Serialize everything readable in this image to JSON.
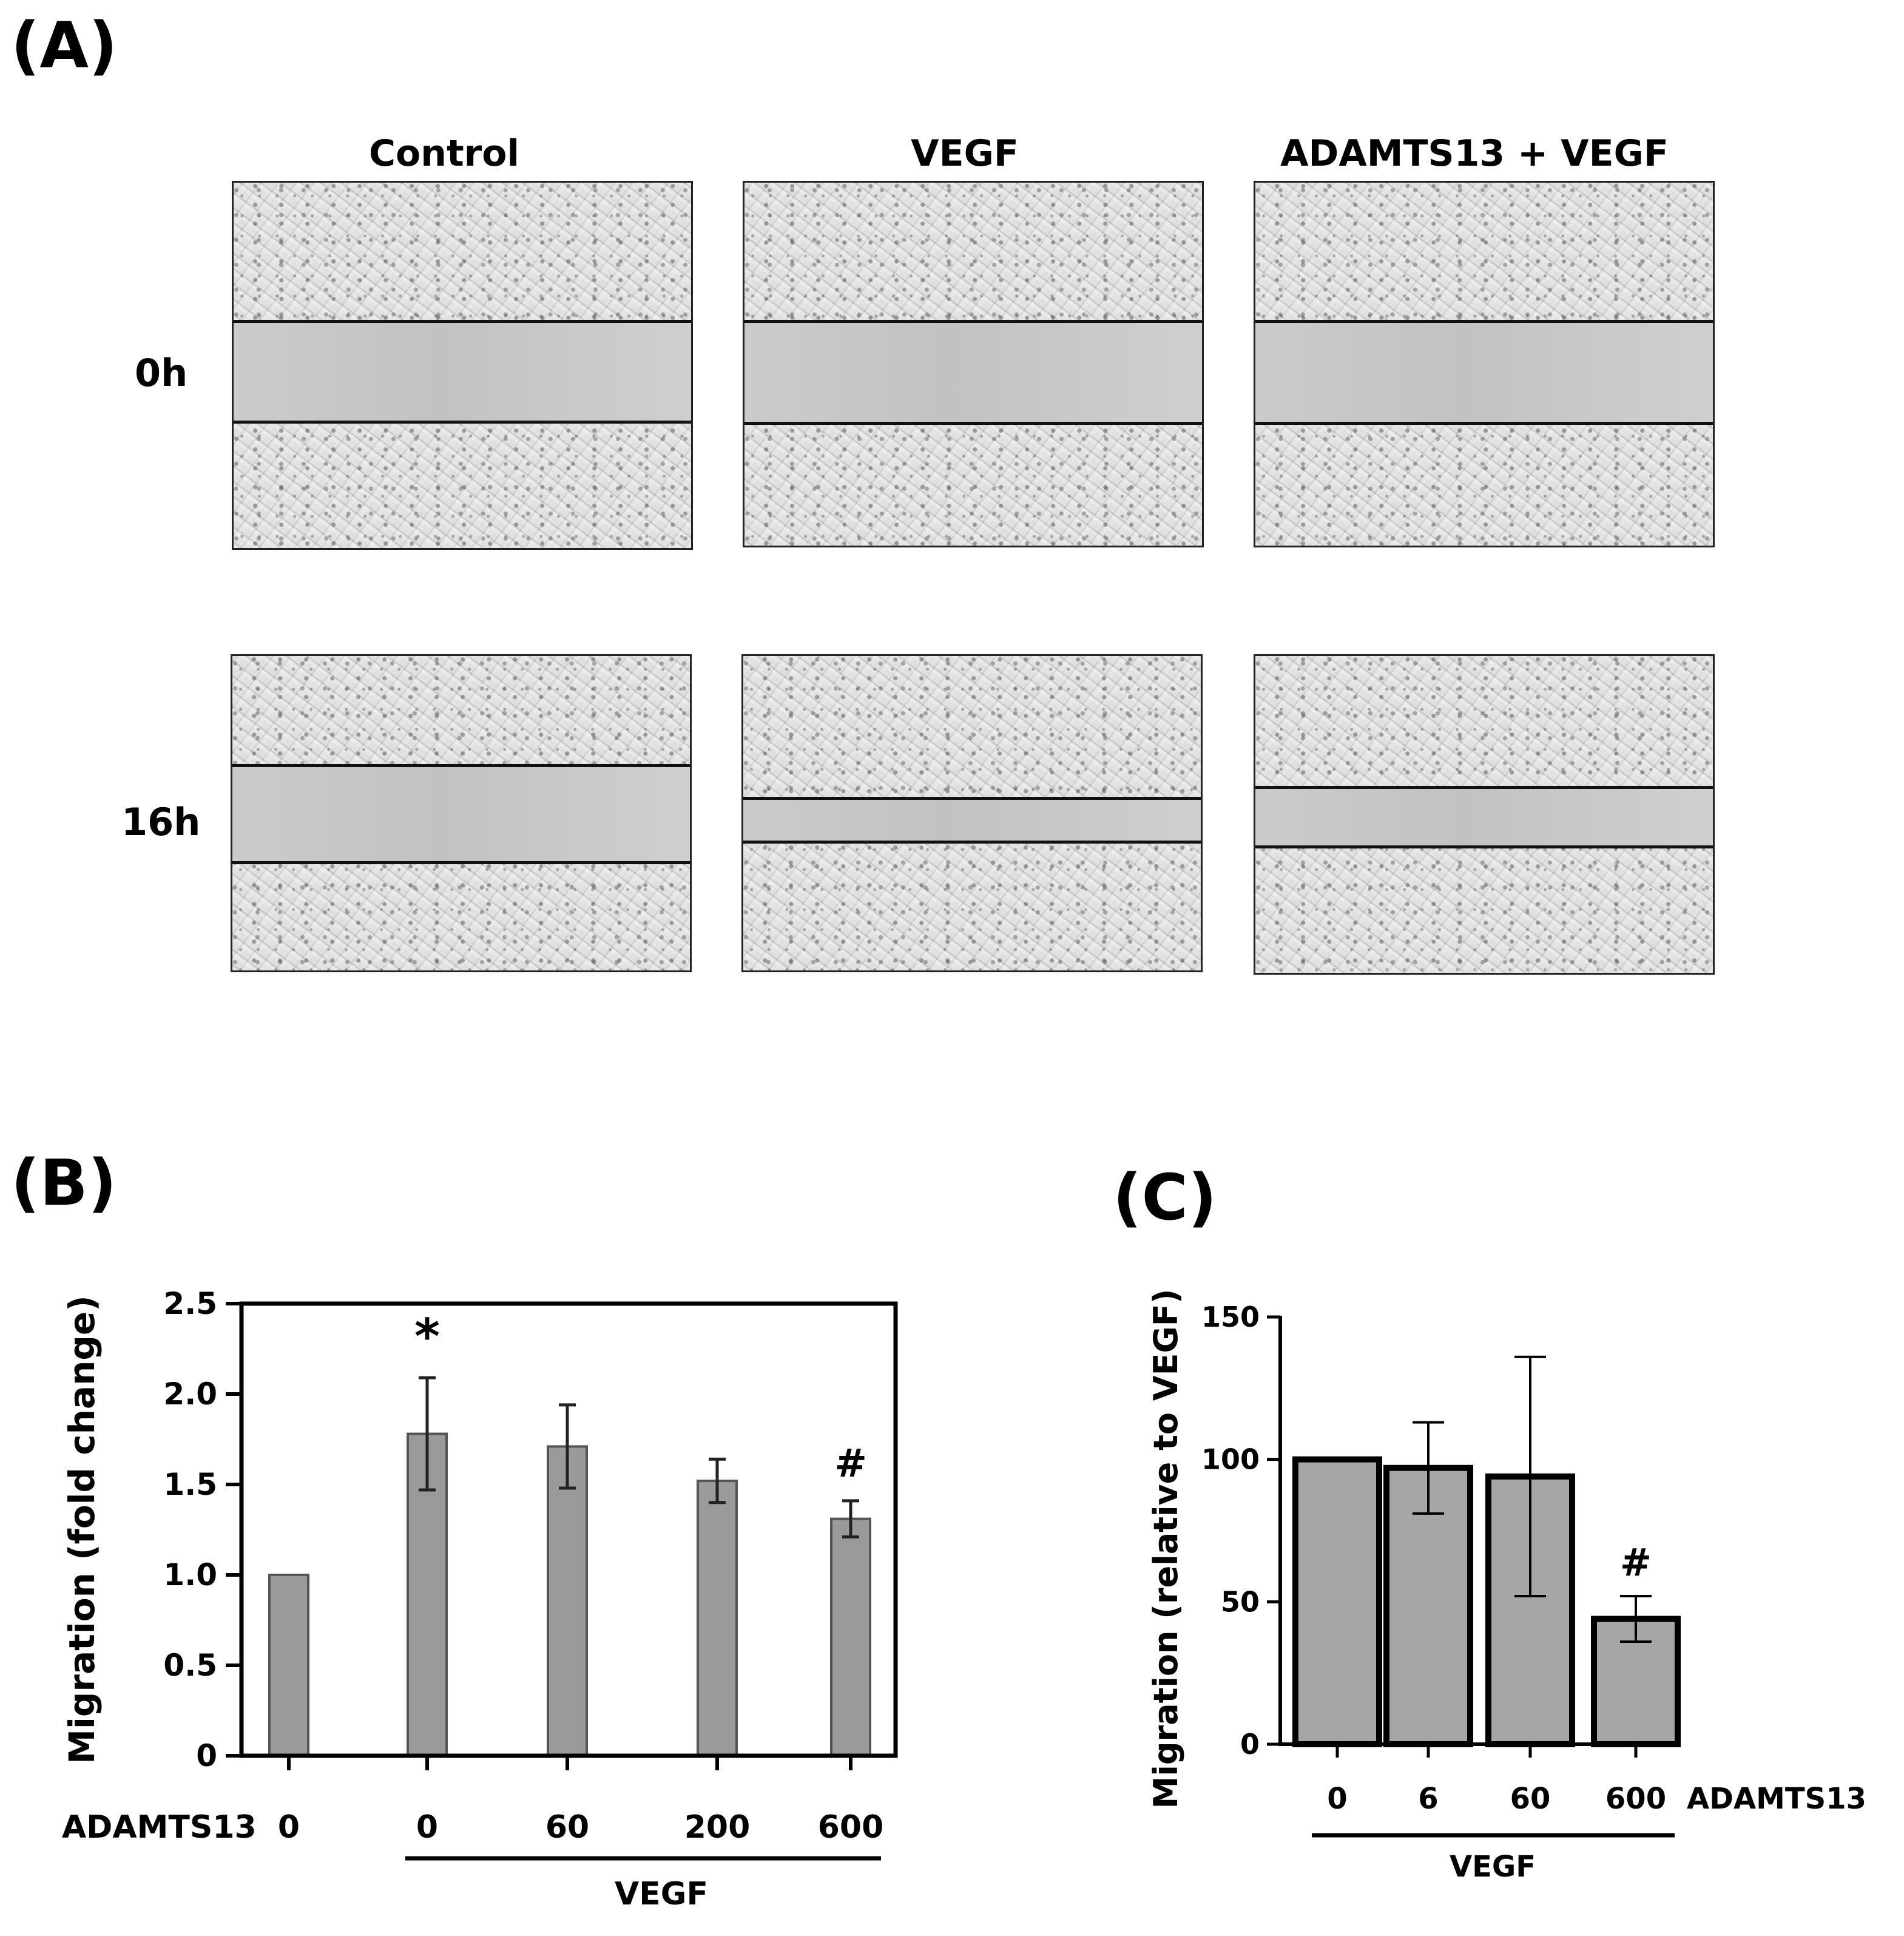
{
  "panel_a": {
    "label": "(A)",
    "columns": [
      "Control",
      "VEGF",
      "ADAMTS13 + VEGF"
    ],
    "rows": [
      "0h",
      "16h"
    ]
  },
  "panel_b": {
    "label": "(B)",
    "adamts_row_label": "ADAMTS13",
    "group_label": "VEGF",
    "star": "*",
    "hash": "#"
  },
  "panel_c": {
    "label": "(C)",
    "adamts_row_label": "ADAMTS13",
    "group_label": "VEGF",
    "hash": "#"
  },
  "chart_data": [
    {
      "type": "bar",
      "panel": "(B)",
      "ylabel": "Migration (fold change)",
      "ylim": [
        0,
        2.5
      ],
      "yticks": [
        "0",
        "0.5",
        "1.0",
        "1.5",
        "2.0",
        "2.5"
      ],
      "categories": [
        "0",
        "0",
        "60",
        "200",
        "600"
      ],
      "values": [
        1.0,
        1.78,
        1.71,
        1.52,
        1.31
      ],
      "errors": [
        0.0,
        0.31,
        0.23,
        0.12,
        0.1
      ],
      "annotations": [
        {
          "category_index": 1,
          "text": "*"
        },
        {
          "category_index": 4,
          "text": "#"
        }
      ],
      "bar_color": "#9a9a9a"
    },
    {
      "type": "bar",
      "panel": "(C)",
      "ylabel": "Migration (relative to VEGF)",
      "ylim": [
        0,
        150
      ],
      "yticks": [
        "0",
        "50",
        "100",
        "150"
      ],
      "categories": [
        "0",
        "6",
        "60",
        "600"
      ],
      "values": [
        100,
        97,
        94,
        44
      ],
      "errors": [
        0,
        16,
        42,
        8
      ],
      "annotations": [
        {
          "category_index": 3,
          "text": "#"
        }
      ],
      "bar_color": "#a6a6a6"
    }
  ]
}
